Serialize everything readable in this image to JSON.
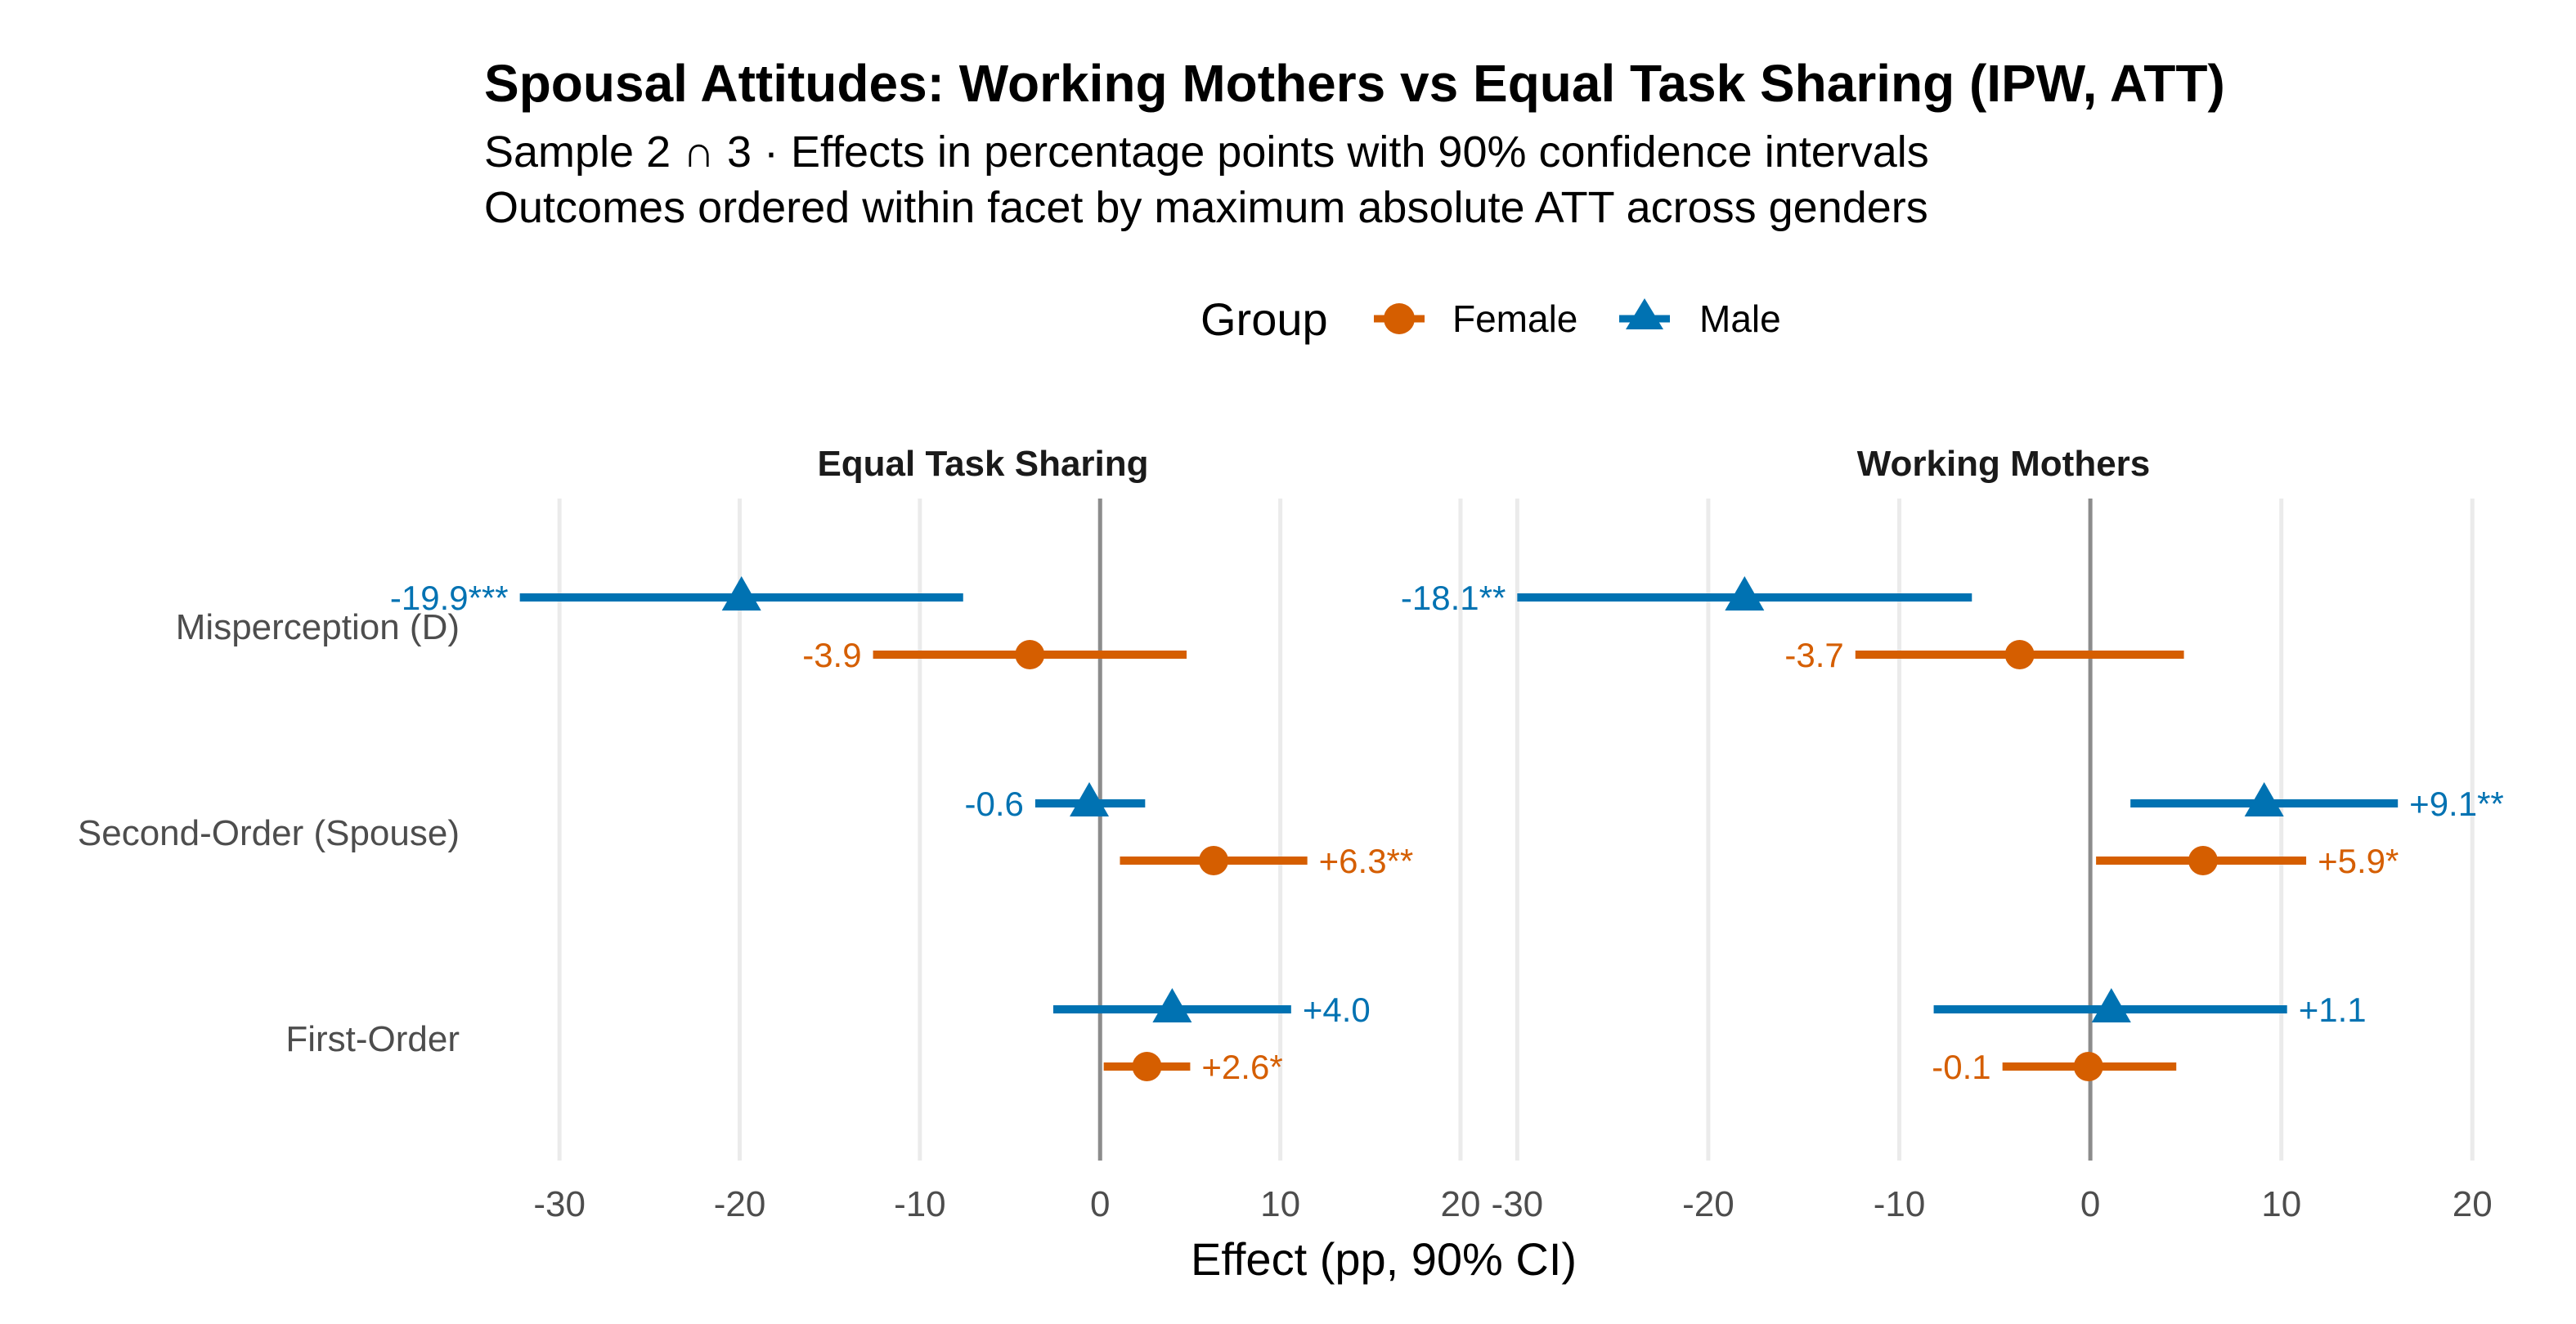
{
  "title": "Spousal Attitudes: Working Mothers vs Equal Task Sharing (IPW, ATT)",
  "subtitle_lines": [
    "Sample 2 ∩ 3 · Effects in percentage points with 90% confidence intervals",
    "Outcomes ordered within facet by maximum absolute ATT across genders"
  ],
  "legend": {
    "title": "Group",
    "items": [
      "Female",
      "Male"
    ]
  },
  "colors": {
    "Female": "#D55E00",
    "Male": "#0072B2"
  },
  "chart_data": [
    {
      "type": "dot-whisker",
      "facet": "Equal Task Sharing",
      "xlabel": "Effect (pp, 90% CI)",
      "xlim": [
        -34,
        21
      ],
      "xticks": [
        -30,
        -20,
        -10,
        0,
        10,
        20
      ],
      "categories": [
        "Misperception (D)",
        "Second-Order (Spouse)",
        "First-Order"
      ],
      "series": [
        {
          "name": "Male",
          "marker": "triangle",
          "estimates": [
            -19.9,
            -0.6,
            4.0
          ],
          "ci_low": [
            -32.2,
            -3.6,
            -2.6
          ],
          "ci_high": [
            -7.6,
            2.5,
            10.6
          ],
          "labels": [
            "-19.9***",
            "-0.6",
            "+4.0"
          ]
        },
        {
          "name": "Female",
          "marker": "circle",
          "estimates": [
            -3.9,
            6.3,
            2.6
          ],
          "ci_low": [
            -12.6,
            1.1,
            0.2
          ],
          "ci_high": [
            4.8,
            11.5,
            5.0
          ],
          "labels": [
            "-3.9",
            "+6.3**",
            "+2.6*"
          ]
        }
      ]
    },
    {
      "type": "dot-whisker",
      "facet": "Working Mothers",
      "xlabel": "Effect (pp, 90% CI)",
      "xlim": [
        -31,
        22
      ],
      "xticks": [
        -30,
        -20,
        -10,
        0,
        10,
        20
      ],
      "categories": [
        "Misperception (D)",
        "Second-Order (Spouse)",
        "First-Order"
      ],
      "series": [
        {
          "name": "Male",
          "marker": "triangle",
          "estimates": [
            -18.1,
            9.1,
            1.1
          ],
          "ci_low": [
            -30.0,
            2.1,
            -8.2
          ],
          "ci_high": [
            -6.2,
            16.1,
            10.3
          ],
          "labels": [
            "-18.1**",
            "+9.1**",
            "+1.1"
          ]
        },
        {
          "name": "Female",
          "marker": "circle",
          "estimates": [
            -3.7,
            5.9,
            -0.1
          ],
          "ci_low": [
            -12.3,
            0.3,
            -4.6
          ],
          "ci_high": [
            4.9,
            11.3,
            4.5
          ],
          "labels": [
            "-3.7",
            "+5.9*",
            "-0.1"
          ]
        }
      ]
    }
  ]
}
